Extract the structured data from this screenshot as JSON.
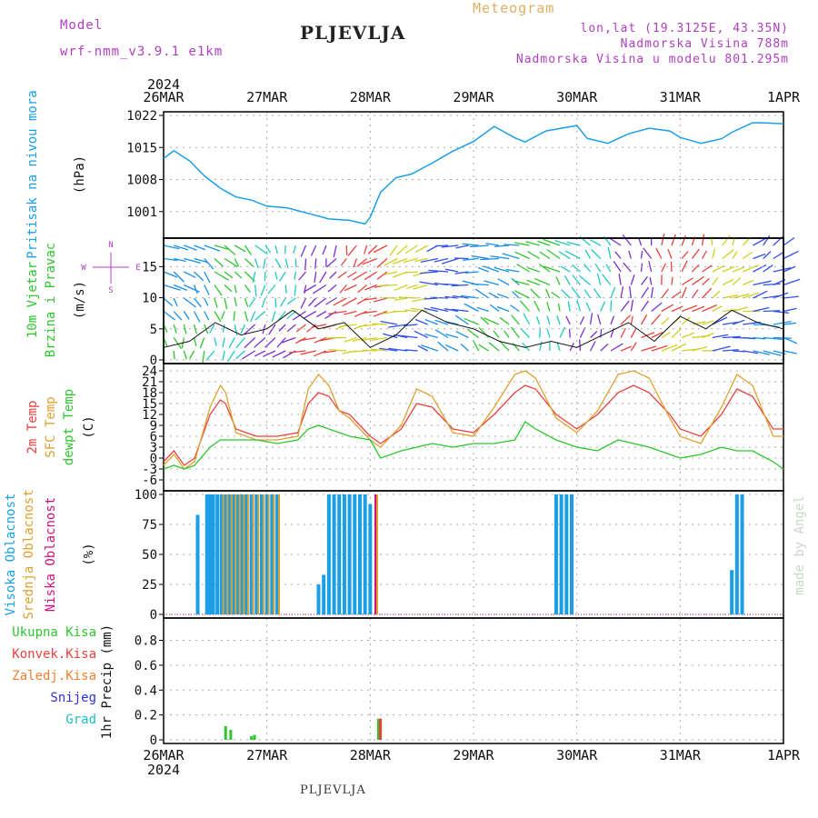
{
  "header": {
    "model_label": "Model",
    "model_name": "wrf-nmm_v3.9.1 e1km",
    "station": "PLJEVLJA",
    "product": "Meteogram",
    "coords": "lon,lat (19.3125E, 43.35N)",
    "elevation": "Nadmorska Visina 788m",
    "model_elevation": "Nadmorska Visina u modelu 801.295m",
    "credit": "made by Angel",
    "footer_station": "PLJEVLJA"
  },
  "colors": {
    "pressure": "#1a9fe6",
    "temp2m": "#e8423c",
    "sfc": "#e0a030",
    "dewpt": "#2ec52e",
    "high_cloud": "#1a9fe6",
    "mid_cloud": "#e0a030",
    "low_cloud": "#d01080",
    "total_precip": "#2ec52e",
    "conv_precip": "#e8423c",
    "frozen_precip": "#f08030",
    "snow": "#3030e0",
    "hail": "#20c0c0",
    "title": "#222222",
    "magenta": "#b040c0",
    "product": "#e0b060",
    "credit": "#c8d8c8"
  },
  "time_axis": {
    "year": "2024",
    "ticks": [
      "26MAR",
      "27MAR",
      "28MAR",
      "29MAR",
      "30MAR",
      "31MAR",
      "1APR"
    ]
  },
  "chart_data": [
    {
      "type": "line",
      "panel": "pressure",
      "ylabel": "Pritisak na nivou mora",
      "unit": "(hPa)",
      "yticks": [
        1001,
        1008,
        1015,
        1022
      ],
      "ylim": [
        996,
        1022
      ],
      "x": [
        0,
        0.1,
        0.25,
        0.4,
        0.55,
        0.7,
        0.85,
        1.0,
        1.2,
        1.4,
        1.6,
        1.8,
        1.95,
        2.0,
        2.1,
        2.25,
        2.4,
        2.6,
        2.8,
        3.0,
        3.2,
        3.4,
        3.5,
        3.7,
        3.9,
        4.0,
        4.1,
        4.3,
        4.5,
        4.7,
        4.9,
        5.0,
        5.2,
        5.4,
        5.5,
        5.7,
        5.8,
        6.0
      ],
      "series": [
        {
          "name": "Pritisak",
          "values": [
            1012.6,
            1014.3,
            1012.1,
            1008.7,
            1006.1,
            1004.2,
            1003.5,
            1002.2,
            1001.8,
            1000.6,
            999.4,
            999.1,
            998.3,
            999.8,
            1005.2,
            1008.4,
            1009.2,
            1011.6,
            1014.2,
            1016.3,
            1019.6,
            1017.1,
            1016.2,
            1018.6,
            1019.4,
            1019.8,
            1017.0,
            1015.9,
            1018.0,
            1019.2,
            1018.6,
            1017.2,
            1015.9,
            1016.9,
            1018.3,
            1020.4,
            1020.4,
            1020.2
          ]
        }
      ]
    },
    {
      "type": "line",
      "panel": "wind",
      "ylabel": "10m Vjetar Brzina i Pravac",
      "unit": "(m/s)",
      "yticks": [
        0,
        5,
        10,
        15
      ],
      "ylim": [
        0,
        19
      ],
      "compass": [
        "N",
        "W",
        "E",
        "S"
      ],
      "x": [
        0,
        0.25,
        0.5,
        0.75,
        1.0,
        1.25,
        1.5,
        1.75,
        2.0,
        2.25,
        2.5,
        2.75,
        3.0,
        3.25,
        3.5,
        3.75,
        4.0,
        4.25,
        4.5,
        4.75,
        5.0,
        5.25,
        5.5,
        5.75,
        6.0
      ],
      "series": [
        {
          "name": "Brzina",
          "values": [
            2,
            3,
            6,
            4,
            5,
            8,
            5,
            6,
            2,
            4,
            8,
            6,
            5,
            3,
            2,
            3,
            2,
            4,
            6,
            3,
            7,
            5,
            8,
            6,
            5
          ]
        }
      ]
    },
    {
      "type": "line",
      "panel": "temperature",
      "ylabel": "Temp",
      "unit": "(C)",
      "legend": [
        "2m Temp",
        "SFC Temp",
        "dewpt Temp"
      ],
      "yticks": [
        -6,
        -3,
        0,
        3,
        6,
        9,
        12,
        15,
        18,
        21,
        24
      ],
      "ylim": [
        -8,
        25
      ],
      "x": [
        0,
        0.1,
        0.2,
        0.3,
        0.45,
        0.55,
        0.6,
        0.7,
        0.9,
        1.1,
        1.3,
        1.4,
        1.5,
        1.6,
        1.7,
        1.8,
        2.0,
        2.1,
        2.3,
        2.45,
        2.6,
        2.8,
        3.0,
        3.2,
        3.4,
        3.5,
        3.6,
        3.8,
        4.0,
        4.2,
        4.4,
        4.55,
        4.7,
        4.9,
        5.0,
        5.2,
        5.4,
        5.55,
        5.7,
        5.9,
        6.0
      ],
      "series": [
        {
          "name": "2m Temp",
          "values": [
            -1,
            2,
            -2,
            0,
            12,
            16,
            15,
            8,
            6,
            6,
            7,
            15,
            18,
            17,
            13,
            12,
            6,
            4,
            8,
            15,
            14,
            8,
            7,
            12,
            18,
            20,
            19,
            12,
            8,
            12,
            18,
            20,
            18,
            12,
            8,
            6,
            12,
            19,
            17,
            8,
            8
          ]
        },
        {
          "name": "SFC Temp",
          "values": [
            -2,
            1,
            -3,
            -1,
            14,
            20,
            18,
            7,
            5,
            5,
            6,
            19,
            23,
            20,
            13,
            11,
            5,
            3,
            9,
            19,
            17,
            7,
            6,
            14,
            23,
            24,
            22,
            11,
            7,
            13,
            23,
            24,
            22,
            11,
            6,
            4,
            14,
            23,
            20,
            6,
            6
          ]
        },
        {
          "name": "dewpt Temp",
          "values": [
            -3,
            -2,
            -3,
            -2,
            3,
            5,
            5,
            5,
            5,
            4,
            5,
            8,
            9,
            8,
            7,
            6,
            5,
            0,
            2,
            3,
            4,
            3,
            4,
            4,
            5,
            10,
            8,
            5,
            3,
            2,
            5,
            4,
            3,
            1,
            0,
            1,
            3,
            2,
            2,
            -1,
            -3
          ]
        }
      ]
    },
    {
      "type": "bar",
      "panel": "cloud",
      "ylabel": "Oblacnost",
      "unit": "(%)",
      "legend": [
        "Visoka Oblacnost",
        "Srednja Oblacnost",
        "Niska Oblacnost"
      ],
      "yticks": [
        0,
        25,
        50,
        75,
        100
      ],
      "ylim": [
        0,
        100
      ],
      "x": [
        0.33,
        0.42,
        0.45,
        0.48,
        0.52,
        0.56,
        0.6,
        0.64,
        0.68,
        0.72,
        0.76,
        0.8,
        0.85,
        0.9,
        0.95,
        1.0,
        1.05,
        1.1,
        1.5,
        1.55,
        1.6,
        1.65,
        1.7,
        1.75,
        1.8,
        1.85,
        1.9,
        1.95,
        2.0,
        2.05,
        3.8,
        3.85,
        3.9,
        3.95,
        5.5,
        5.55,
        5.6
      ],
      "series": [
        {
          "name": "Visoka Oblacnost",
          "values": [
            83,
            100,
            100,
            100,
            100,
            100,
            100,
            100,
            100,
            100,
            100,
            100,
            100,
            100,
            100,
            100,
            100,
            100,
            25,
            33,
            100,
            100,
            100,
            100,
            100,
            100,
            100,
            100,
            92,
            0,
            100,
            100,
            100,
            100,
            37,
            100,
            100
          ]
        },
        {
          "name": "Srednja Oblacnost",
          "values": [
            0,
            0,
            0,
            0,
            0,
            100,
            100,
            100,
            100,
            100,
            100,
            100,
            100,
            100,
            100,
            100,
            100,
            100,
            0,
            0,
            0,
            0,
            0,
            0,
            0,
            0,
            0,
            0,
            0,
            100,
            0,
            0,
            0,
            0,
            0,
            0,
            0
          ]
        },
        {
          "name": "Niska Oblacnost",
          "values": [
            0,
            0,
            0,
            0,
            0,
            0,
            0,
            0,
            0,
            0,
            0,
            0,
            0,
            0,
            0,
            0,
            0,
            0,
            0,
            0,
            0,
            0,
            0,
            0,
            0,
            0,
            0,
            0,
            0,
            100,
            0,
            0,
            0,
            0,
            0,
            0,
            0
          ]
        }
      ]
    },
    {
      "type": "bar",
      "panel": "precip",
      "ylabel": "1hr Precip",
      "unit": "(mm)",
      "legend": [
        "Ukupna Kisa",
        "Konvek.Kisa",
        "Zaledj.Kisa",
        "Snijeg",
        "Grad"
      ],
      "yticks": [
        0,
        0.2,
        0.4,
        0.6,
        0.8
      ],
      "ylim": [
        0,
        0.95
      ],
      "x": [
        0.6,
        0.65,
        0.85,
        0.88,
        2.08,
        2.1
      ],
      "series": [
        {
          "name": "Ukupna Kisa",
          "values": [
            0.11,
            0.08,
            0.03,
            0.04,
            0.17,
            0.17
          ]
        },
        {
          "name": "Konvek.Kisa",
          "values": [
            0,
            0,
            0,
            0,
            0.17,
            0
          ]
        }
      ]
    }
  ]
}
